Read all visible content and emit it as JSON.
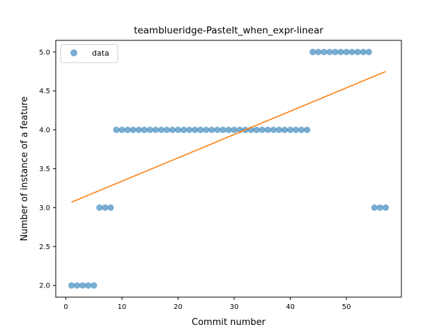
{
  "chart_data": {
    "type": "scatter",
    "title": "teamblueridge-PasteIt_when_expr-linear",
    "xlabel": "Commit number",
    "ylabel": "Number of instance of a feature",
    "xlim": [
      -1.8,
      59.8
    ],
    "ylim": [
      1.85,
      5.15
    ],
    "xticks": [
      0,
      10,
      20,
      30,
      40,
      50
    ],
    "yticks": [
      2.0,
      2.5,
      3.0,
      3.5,
      4.0,
      4.5,
      5.0
    ],
    "legend_position": "upper-left",
    "series": [
      {
        "name": "data",
        "kind": "scatter",
        "color": "#1f77b4",
        "x": [
          1,
          2,
          3,
          4,
          5,
          6,
          7,
          8,
          9,
          10,
          11,
          12,
          13,
          14,
          15,
          16,
          17,
          18,
          19,
          20,
          21,
          22,
          23,
          24,
          25,
          26,
          27,
          28,
          29,
          30,
          31,
          32,
          33,
          34,
          35,
          36,
          37,
          38,
          39,
          40,
          41,
          42,
          43,
          44,
          45,
          46,
          47,
          48,
          49,
          50,
          51,
          52,
          53,
          54,
          55,
          56,
          57
        ],
        "y": [
          2,
          2,
          2,
          2,
          2,
          3,
          3,
          3,
          4,
          4,
          4,
          4,
          4,
          4,
          4,
          4,
          4,
          4,
          4,
          4,
          4,
          4,
          4,
          4,
          4,
          4,
          4,
          4,
          4,
          4,
          4,
          4,
          4,
          4,
          4,
          4,
          4,
          4,
          4,
          4,
          4,
          4,
          4,
          5,
          5,
          5,
          5,
          5,
          5,
          5,
          5,
          5,
          5,
          5,
          3,
          3,
          3
        ]
      },
      {
        "kind": "line",
        "color": "#ff7f0e",
        "x": [
          1,
          57
        ],
        "y": [
          3.07,
          4.75
        ]
      }
    ]
  }
}
